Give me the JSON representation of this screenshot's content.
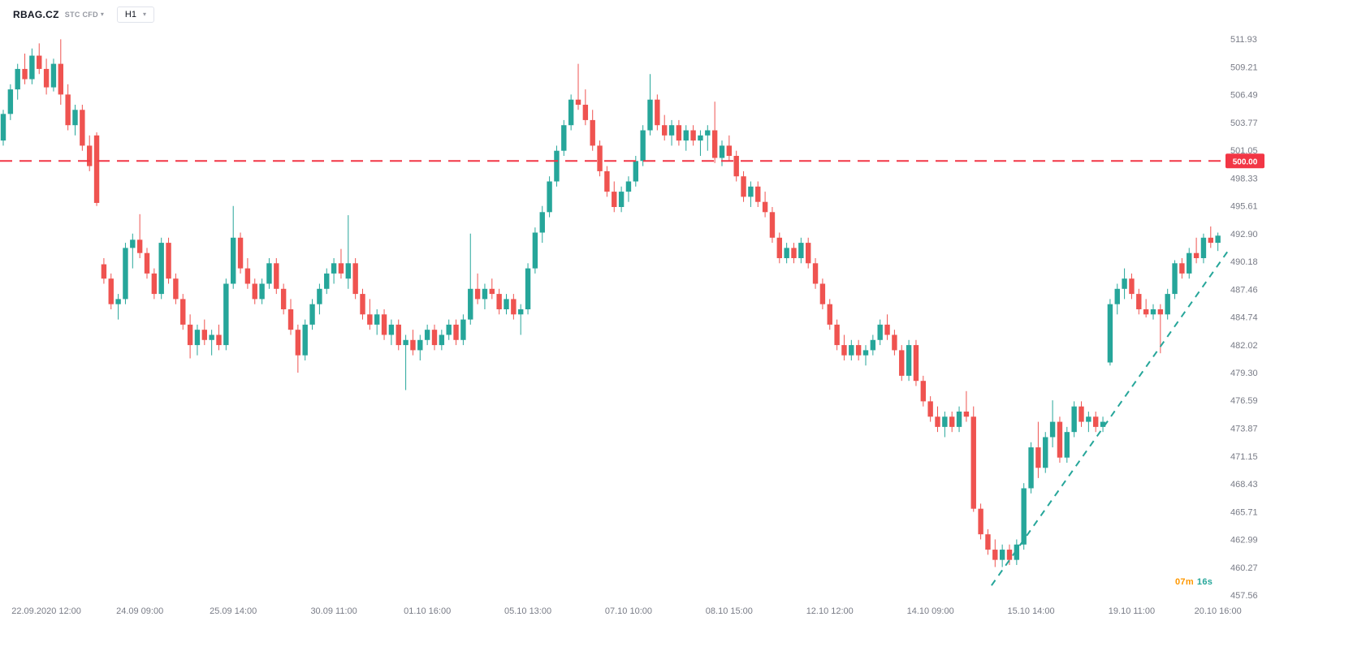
{
  "header": {
    "symbol": "RBAG.CZ",
    "symbol_type": "STC CFD",
    "timeframe": "H1"
  },
  "countdown": {
    "minutes": "07m",
    "seconds": "16s"
  },
  "colors": {
    "up": "#26a69a",
    "down": "#ef5350",
    "hline": "#f23645",
    "trend": "#26a69a",
    "countdown_minutes": "#ff9800",
    "countdown_seconds": "#26a69a",
    "axis_text": "#787b86",
    "tag_text": "#ffffff"
  },
  "chart_data": {
    "type": "candlestick",
    "title": "RBAG.CZ STC CFD H1",
    "xlabel": "",
    "ylabel": "",
    "grid": false,
    "legend": false,
    "price_range": [
      457.56,
      511.93
    ],
    "price_axis_ticks": [
      "511.93",
      "509.21",
      "506.49",
      "503.77",
      "501.05",
      "498.33",
      "495.61",
      "492.90",
      "490.18",
      "487.46",
      "484.74",
      "482.02",
      "479.30",
      "476.59",
      "473.87",
      "471.15",
      "468.43",
      "465.71",
      "462.99",
      "460.27",
      "457.56"
    ],
    "time_labels": [
      {
        "index": 6,
        "label": "22.09.2020 12:00"
      },
      {
        "index": 19,
        "label": "24.09 09:00"
      },
      {
        "index": 32,
        "label": "25.09 14:00"
      },
      {
        "index": 46,
        "label": "30.09 11:00"
      },
      {
        "index": 59,
        "label": "01.10 16:00"
      },
      {
        "index": 73,
        "label": "05.10 13:00"
      },
      {
        "index": 87,
        "label": "07.10 10:00"
      },
      {
        "index": 101,
        "label": "08.10 15:00"
      },
      {
        "index": 115,
        "label": "12.10 12:00"
      },
      {
        "index": 129,
        "label": "14.10 09:00"
      },
      {
        "index": 143,
        "label": "15.10 14:00"
      },
      {
        "index": 157,
        "label": "19.10 11:00"
      },
      {
        "index": 169,
        "label": "20.10 16:00"
      }
    ],
    "horizontal_line": {
      "price": 500.0,
      "label": "500.00",
      "style": "dashed"
    },
    "trend_line": {
      "from": {
        "index": 137.5,
        "price": 458.5
      },
      "to": {
        "index": 170.5,
        "price": 491.3
      },
      "style": "dashed"
    },
    "candles": [
      [
        502.0,
        505.0,
        501.5,
        504.6
      ],
      [
        504.6,
        507.5,
        504.0,
        507.0
      ],
      [
        507.0,
        509.5,
        506.0,
        509.0
      ],
      [
        509.0,
        510.5,
        507.5,
        508.0
      ],
      [
        508.0,
        511.0,
        507.5,
        510.3
      ],
      [
        510.3,
        511.5,
        508.5,
        509.0
      ],
      [
        509.0,
        510.0,
        506.5,
        507.2
      ],
      [
        507.2,
        510.0,
        506.8,
        509.5
      ],
      [
        509.5,
        511.9,
        505.5,
        506.5
      ],
      [
        506.5,
        507.5,
        503.0,
        503.5
      ],
      [
        503.5,
        505.5,
        502.5,
        505.0
      ],
      [
        505.0,
        505.5,
        501.0,
        501.5
      ],
      [
        501.5,
        502.5,
        499.0,
        499.5
      ],
      [
        502.5,
        502.8,
        495.6,
        495.9
      ],
      [
        489.9,
        490.5,
        488.0,
        488.5
      ],
      [
        488.5,
        489.0,
        485.5,
        486.0
      ],
      [
        486.0,
        487.0,
        484.5,
        486.5
      ],
      [
        486.5,
        492.0,
        486.0,
        491.5
      ],
      [
        491.5,
        492.9,
        489.5,
        492.3
      ],
      [
        492.3,
        494.8,
        490.5,
        491.0
      ],
      [
        491.0,
        491.5,
        488.5,
        489.0
      ],
      [
        489.0,
        489.5,
        486.5,
        487.0
      ],
      [
        487.0,
        492.5,
        486.5,
        492.0
      ],
      [
        492.0,
        492.5,
        488.0,
        488.5
      ],
      [
        488.5,
        489.0,
        486.0,
        486.5
      ],
      [
        486.5,
        487.0,
        483.5,
        484.0
      ],
      [
        484.0,
        485.0,
        480.7,
        482.0
      ],
      [
        482.0,
        484.0,
        481.0,
        483.5
      ],
      [
        483.5,
        484.5,
        482.0,
        482.5
      ],
      [
        482.5,
        483.5,
        481.0,
        483.0
      ],
      [
        483.0,
        484.0,
        481.5,
        482.0
      ],
      [
        482.0,
        488.5,
        481.5,
        488.0
      ],
      [
        488.0,
        495.6,
        487.5,
        492.5
      ],
      [
        492.5,
        493.0,
        489.0,
        489.5
      ],
      [
        489.5,
        490.5,
        487.5,
        488.0
      ],
      [
        488.0,
        488.5,
        486.0,
        486.5
      ],
      [
        486.5,
        488.5,
        486.0,
        488.0
      ],
      [
        488.0,
        490.5,
        487.5,
        490.0
      ],
      [
        490.0,
        490.5,
        487.0,
        487.5
      ],
      [
        487.5,
        488.0,
        485.0,
        485.5
      ],
      [
        485.5,
        486.5,
        483.0,
        483.5
      ],
      [
        483.5,
        484.0,
        479.3,
        481.0
      ],
      [
        481.0,
        484.5,
        480.5,
        484.0
      ],
      [
        484.0,
        486.5,
        483.5,
        486.0
      ],
      [
        486.0,
        488.0,
        485.0,
        487.5
      ],
      [
        487.5,
        489.5,
        487.0,
        489.0
      ],
      [
        489.0,
        490.5,
        488.0,
        490.0
      ],
      [
        490.0,
        491.4,
        488.5,
        489.0
      ],
      [
        488.5,
        494.7,
        487.5,
        490.0
      ],
      [
        490.0,
        490.5,
        486.5,
        487.0
      ],
      [
        487.0,
        487.5,
        484.5,
        485.0
      ],
      [
        485.0,
        486.5,
        483.5,
        484.0
      ],
      [
        484.0,
        485.5,
        483.0,
        485.0
      ],
      [
        485.0,
        485.5,
        482.5,
        483.0
      ],
      [
        483.0,
        484.5,
        482.0,
        484.0
      ],
      [
        484.0,
        484.5,
        481.5,
        482.0
      ],
      [
        482.0,
        483.0,
        477.6,
        482.5
      ],
      [
        482.5,
        483.5,
        481.0,
        481.5
      ],
      [
        481.5,
        483.0,
        480.5,
        482.5
      ],
      [
        482.5,
        484.0,
        482.0,
        483.5
      ],
      [
        483.5,
        484.0,
        481.5,
        482.0
      ],
      [
        482.0,
        483.5,
        481.5,
        483.0
      ],
      [
        483.0,
        484.5,
        482.5,
        484.0
      ],
      [
        484.0,
        484.5,
        482.0,
        482.5
      ],
      [
        482.5,
        485.0,
        482.0,
        484.5
      ],
      [
        484.5,
        492.9,
        484.0,
        487.5
      ],
      [
        487.5,
        489.0,
        486.0,
        486.5
      ],
      [
        486.5,
        488.0,
        485.5,
        487.5
      ],
      [
        487.5,
        488.5,
        486.5,
        487.0
      ],
      [
        487.0,
        487.5,
        485.0,
        485.5
      ],
      [
        485.5,
        487.0,
        485.0,
        486.5
      ],
      [
        486.5,
        487.0,
        484.5,
        485.0
      ],
      [
        485.0,
        486.0,
        483.0,
        485.5
      ],
      [
        485.5,
        490.0,
        485.0,
        489.5
      ],
      [
        489.5,
        493.5,
        489.0,
        493.0
      ],
      [
        493.0,
        495.6,
        492.0,
        495.0
      ],
      [
        495.0,
        498.5,
        494.5,
        498.0
      ],
      [
        498.0,
        501.5,
        497.5,
        501.0
      ],
      [
        501.0,
        504.0,
        500.5,
        503.5
      ],
      [
        503.5,
        506.5,
        503.0,
        506.0
      ],
      [
        506.0,
        509.5,
        505.0,
        505.5
      ],
      [
        505.5,
        507.0,
        503.5,
        504.0
      ],
      [
        504.0,
        505.0,
        501.0,
        501.5
      ],
      [
        501.5,
        502.0,
        498.5,
        499.0
      ],
      [
        499.0,
        499.5,
        496.5,
        497.0
      ],
      [
        497.0,
        498.0,
        495.0,
        495.5
      ],
      [
        495.5,
        497.5,
        495.0,
        497.0
      ],
      [
        497.0,
        498.5,
        496.0,
        498.0
      ],
      [
        498.0,
        500.5,
        497.5,
        500.0
      ],
      [
        500.0,
        503.5,
        499.5,
        503.0
      ],
      [
        503.0,
        508.5,
        502.5,
        506.0
      ],
      [
        506.0,
        506.5,
        503.0,
        503.5
      ],
      [
        503.5,
        504.5,
        502.0,
        502.5
      ],
      [
        502.5,
        504.0,
        501.5,
        503.5
      ],
      [
        503.5,
        504.0,
        501.5,
        502.0
      ],
      [
        502.0,
        503.5,
        501.0,
        503.0
      ],
      [
        503.0,
        503.5,
        501.5,
        502.0
      ],
      [
        502.0,
        503.0,
        500.5,
        502.5
      ],
      [
        502.5,
        503.5,
        501.0,
        503.0
      ],
      [
        503.0,
        505.8,
        499.8,
        500.3
      ],
      [
        500.3,
        502.0,
        499.5,
        501.5
      ],
      [
        501.5,
        502.5,
        500.0,
        500.5
      ],
      [
        500.5,
        501.0,
        498.0,
        498.5
      ],
      [
        498.5,
        499.0,
        496.0,
        496.5
      ],
      [
        496.5,
        498.0,
        495.5,
        497.5
      ],
      [
        497.5,
        498.0,
        495.5,
        496.0
      ],
      [
        496.0,
        497.0,
        494.5,
        495.0
      ],
      [
        495.0,
        495.5,
        492.0,
        492.5
      ],
      [
        492.5,
        493.0,
        490.0,
        490.5
      ],
      [
        490.5,
        492.0,
        490.0,
        491.5
      ],
      [
        491.5,
        492.0,
        490.0,
        490.5
      ],
      [
        490.5,
        492.5,
        490.0,
        492.0
      ],
      [
        492.0,
        492.5,
        489.5,
        490.0
      ],
      [
        490.0,
        490.5,
        487.5,
        488.0
      ],
      [
        488.0,
        488.5,
        485.5,
        486.0
      ],
      [
        486.0,
        486.5,
        483.5,
        484.0
      ],
      [
        484.0,
        484.5,
        481.5,
        482.0
      ],
      [
        482.0,
        483.0,
        480.5,
        481.0
      ],
      [
        481.0,
        482.5,
        480.5,
        482.0
      ],
      [
        482.0,
        482.5,
        480.5,
        481.0
      ],
      [
        481.0,
        482.0,
        480.0,
        481.5
      ],
      [
        481.5,
        483.0,
        481.0,
        482.5
      ],
      [
        482.5,
        484.5,
        482.0,
        484.0
      ],
      [
        484.0,
        485.0,
        482.5,
        483.0
      ],
      [
        483.0,
        483.5,
        481.0,
        481.5
      ],
      [
        481.5,
        482.0,
        478.5,
        479.0
      ],
      [
        479.0,
        482.5,
        478.5,
        482.0
      ],
      [
        482.0,
        482.5,
        478.0,
        478.5
      ],
      [
        478.5,
        479.0,
        476.0,
        476.5
      ],
      [
        476.5,
        477.0,
        474.5,
        475.0
      ],
      [
        475.0,
        476.0,
        473.5,
        474.0
      ],
      [
        474.0,
        475.5,
        473.0,
        475.0
      ],
      [
        475.0,
        475.5,
        473.5,
        474.0
      ],
      [
        474.0,
        476.0,
        473.5,
        475.5
      ],
      [
        475.5,
        477.5,
        474.5,
        475.0
      ],
      [
        475.0,
        476.0,
        465.7,
        466.0
      ],
      [
        466.0,
        466.5,
        463.0,
        463.5
      ],
      [
        463.5,
        464.0,
        461.5,
        462.0
      ],
      [
        462.0,
        463.0,
        460.3,
        461.0
      ],
      [
        461.0,
        462.5,
        460.3,
        462.0
      ],
      [
        462.0,
        462.5,
        460.5,
        461.0
      ],
      [
        461.0,
        463.0,
        460.5,
        462.5
      ],
      [
        462.5,
        468.5,
        462.0,
        468.0
      ],
      [
        468.0,
        472.5,
        467.5,
        472.0
      ],
      [
        472.0,
        474.5,
        469.0,
        470.0
      ],
      [
        470.0,
        473.5,
        469.5,
        473.0
      ],
      [
        473.0,
        476.6,
        472.0,
        474.5
      ],
      [
        474.5,
        475.0,
        470.5,
        471.0
      ],
      [
        471.0,
        474.0,
        470.5,
        473.5
      ],
      [
        473.5,
        476.5,
        473.0,
        476.0
      ],
      [
        476.0,
        476.5,
        474.0,
        474.5
      ],
      [
        474.5,
        475.5,
        473.5,
        475.0
      ],
      [
        475.0,
        475.5,
        473.5,
        474.0
      ],
      [
        474.0,
        475.0,
        473.5,
        474.5
      ],
      [
        480.3,
        486.5,
        480.0,
        486.0
      ],
      [
        486.0,
        488.0,
        485.0,
        487.5
      ],
      [
        487.5,
        489.5,
        486.5,
        488.5
      ],
      [
        488.5,
        489.0,
        486.5,
        487.0
      ],
      [
        487.0,
        487.5,
        485.0,
        485.5
      ],
      [
        485.5,
        486.5,
        484.7,
        485.0
      ],
      [
        485.0,
        486.0,
        484.5,
        485.5
      ],
      [
        485.5,
        486.0,
        481.2,
        485.0
      ],
      [
        485.0,
        487.5,
        484.5,
        487.0
      ],
      [
        487.0,
        490.3,
        486.5,
        490.0
      ],
      [
        490.0,
        490.5,
        488.5,
        489.0
      ],
      [
        489.0,
        491.5,
        488.5,
        491.0
      ],
      [
        491.0,
        492.5,
        490.0,
        490.5
      ],
      [
        490.5,
        492.9,
        490.0,
        492.5
      ],
      [
        492.5,
        493.6,
        491.5,
        492.0
      ],
      [
        492.0,
        493.0,
        491.2,
        492.7
      ]
    ]
  }
}
